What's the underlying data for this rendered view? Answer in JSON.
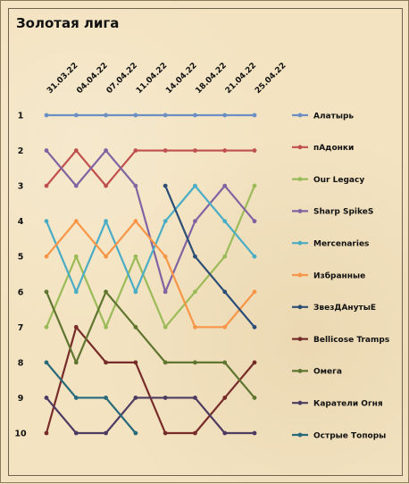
{
  "chart_data": {
    "type": "line",
    "title": "Золотая лига",
    "x": [
      "31.03.22",
      "04.04.22",
      "07.04.22",
      "11.04.22",
      "14.04.22",
      "18.04.22",
      "21.04.22",
      "25.04.22"
    ],
    "y_ticks": [
      "1",
      "2",
      "3",
      "4",
      "5",
      "6",
      "7",
      "8",
      "9",
      "10"
    ],
    "ylim": [
      1,
      10
    ],
    "y_inverted": true,
    "grid": false,
    "legend_position": "right",
    "series": [
      {
        "name": "Алатырь",
        "color": "#6b8fc4",
        "values": [
          1,
          1,
          1,
          1,
          1,
          1,
          1,
          1
        ]
      },
      {
        "name": "пАдонки",
        "color": "#c0504d",
        "values": [
          3,
          2,
          3,
          2,
          2,
          2,
          2,
          2
        ]
      },
      {
        "name": "Our Legacy",
        "color": "#9bbb59",
        "values": [
          7,
          5,
          7,
          5,
          7,
          6,
          5,
          3
        ]
      },
      {
        "name": "Sharp SpikeS",
        "color": "#8064a2",
        "values": [
          2,
          3,
          2,
          3,
          6,
          4,
          3,
          4
        ]
      },
      {
        "name": "Mercenaries",
        "color": "#4bacc6",
        "values": [
          4,
          6,
          4,
          6,
          4,
          3,
          4,
          5
        ]
      },
      {
        "name": "Избранные",
        "color": "#f79646",
        "values": [
          5,
          4,
          5,
          4,
          5,
          7,
          7,
          6
        ]
      },
      {
        "name": "ЗвезДАнутыЕ",
        "color": "#2c4d75",
        "values": [
          null,
          null,
          null,
          null,
          3,
          5,
          6,
          7
        ]
      },
      {
        "name": "Bellicose Tramps",
        "color": "#772c2a",
        "values": [
          10,
          7,
          8,
          8,
          10,
          10,
          9,
          8
        ]
      },
      {
        "name": "Омега",
        "color": "#5f7530",
        "values": [
          6,
          8,
          6,
          7,
          8,
          8,
          8,
          9
        ]
      },
      {
        "name": "Каратели Огня",
        "color": "#4d3b62",
        "values": [
          9,
          10,
          10,
          9,
          9,
          9,
          10,
          10
        ]
      },
      {
        "name": "Острые Топоры",
        "color": "#276a7c",
        "values": [
          8,
          9,
          9,
          10,
          null,
          null,
          null,
          null
        ]
      }
    ]
  }
}
